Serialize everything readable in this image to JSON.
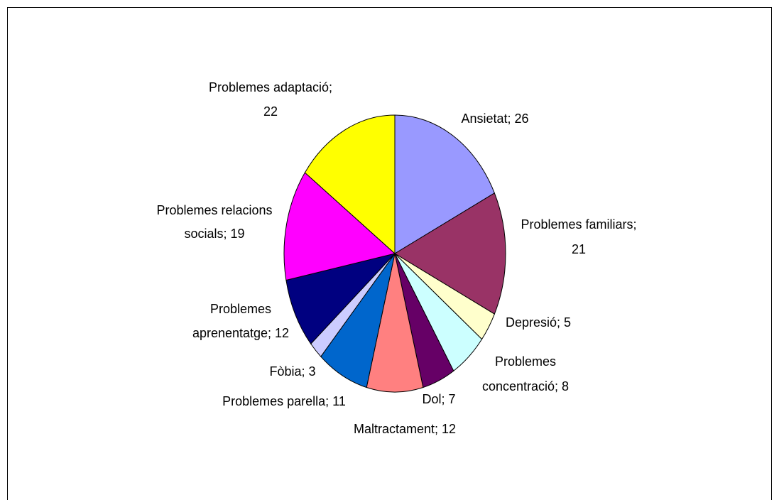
{
  "chart_data": {
    "type": "pie",
    "values": [
      26,
      21,
      5,
      8,
      7,
      12,
      11,
      3,
      12,
      19,
      22
    ],
    "value_labels": [
      [
        "Ansietat; 26"
      ],
      [
        "Problemes familiars;",
        "21"
      ],
      [
        "Depresió; 5"
      ],
      [
        "Problemes",
        "concentració; 8"
      ],
      [
        "Dol; 7"
      ],
      [
        "Maltractament; 12"
      ],
      [
        "Problemes parella; 11"
      ],
      [
        "Fòbia; 3"
      ],
      [
        "Problemes",
        "aprenentatge; 12"
      ],
      [
        "Problemes relacions",
        "socials; 19"
      ],
      [
        "Problemes adaptació;",
        "22"
      ]
    ],
    "colors": [
      "#9999ff",
      "#993366",
      "#ffffcc",
      "#ccffff",
      "#660066",
      "#ff8080",
      "#0066cc",
      "#ccccff",
      "#000080",
      "#ff00ff",
      "#ffff00"
    ]
  }
}
